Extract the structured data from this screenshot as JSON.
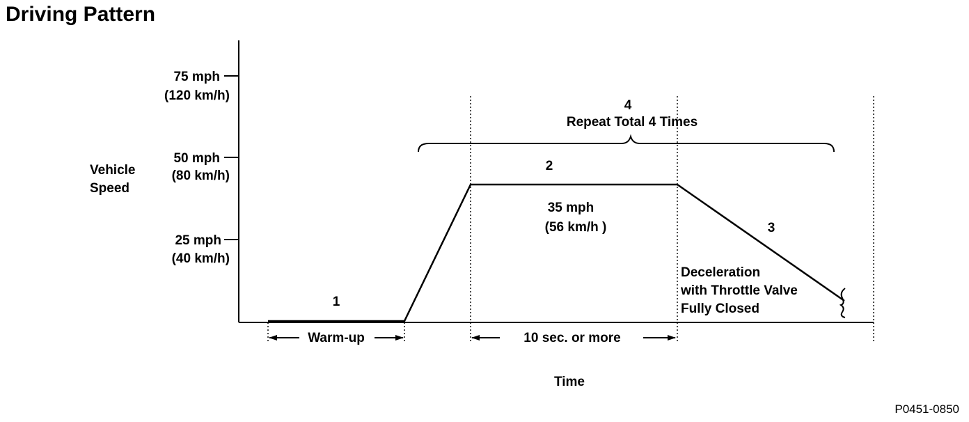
{
  "title": "Driving Pattern",
  "figure_code": "P0451-0850",
  "y_axis": {
    "label_line1": "Vehicle",
    "label_line2": "Speed",
    "ticks": [
      {
        "mph": "75 mph",
        "kmh": "(120 km/h)"
      },
      {
        "mph": "50 mph",
        "kmh": "(80 km/h)"
      },
      {
        "mph": "25 mph",
        "kmh": "(40 km/h)"
      }
    ]
  },
  "x_axis": {
    "label": "Time"
  },
  "steps": {
    "step1": "1",
    "step2": "2",
    "step3": "3",
    "step4": "4",
    "repeat": "Repeat Total 4 Times",
    "cruise_mph": "35 mph",
    "cruise_kmh": "(56 km/h )",
    "decel_line1": "Deceleration",
    "decel_line2": "with Throttle Valve",
    "decel_line3": "Fully Closed"
  },
  "intervals": {
    "warmup": "Warm-up",
    "hold": "10 sec. or more"
  }
}
